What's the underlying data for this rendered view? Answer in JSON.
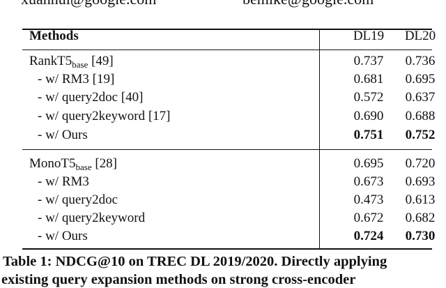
{
  "header_emails": [
    "xuanhui@google.com",
    "bemike@google.com"
  ],
  "table": {
    "columns": [
      "Methods",
      "DL19",
      "DL20"
    ],
    "groups": [
      {
        "base": {
          "name": "RankT5",
          "sub": "base",
          "ref": "[49]",
          "dl19": "0.737",
          "dl20": "0.736"
        },
        "rows": [
          {
            "method": "- w/ RM3 [19]",
            "dl19": "0.681",
            "dl20": "0.695",
            "bold": false
          },
          {
            "method": "- w/ query2doc [40]",
            "dl19": "0.572",
            "dl20": "0.637",
            "bold": false
          },
          {
            "method": "- w/ query2keyword [17]",
            "dl19": "0.690",
            "dl20": "0.688",
            "bold": false
          },
          {
            "method": "- w/ Ours",
            "dl19": "0.751",
            "dl20": "0.752",
            "bold": true
          }
        ]
      },
      {
        "base": {
          "name": "MonoT5",
          "sub": "base",
          "ref": "[28]",
          "dl19": "0.695",
          "dl20": "0.720"
        },
        "rows": [
          {
            "method": "- w/ RM3",
            "dl19": "0.673",
            "dl20": "0.693",
            "bold": false
          },
          {
            "method": "- w/ query2doc",
            "dl19": "0.473",
            "dl20": "0.613",
            "bold": false
          },
          {
            "method": "- w/ query2keyword",
            "dl19": "0.672",
            "dl20": "0.682",
            "bold": false
          },
          {
            "method": "- w/ Ours",
            "dl19": "0.724",
            "dl20": "0.730",
            "bold": true
          }
        ]
      }
    ]
  },
  "caption": {
    "line1": "Table 1: NDCG@10 on TREC DL 2019/2020. Directly applying",
    "line2": "existing query expansion methods on strong cross-encoder"
  }
}
